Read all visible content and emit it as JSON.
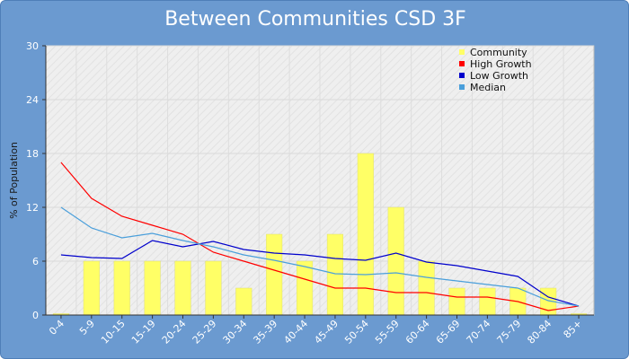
{
  "chart_data": {
    "type": "bar",
    "title": "Between Communities CSD 3F",
    "ylabel": "% of Population",
    "xlabel": "",
    "ylim": [
      0,
      30
    ],
    "yticks": [
      0,
      6,
      12,
      18,
      24,
      30
    ],
    "grid": true,
    "legend_position": "top-right",
    "categories": [
      "0-4",
      "5-9",
      "10-15",
      "15-19",
      "20-24",
      "25-29",
      "30-34",
      "35-39",
      "40-44",
      "45-49",
      "50-54",
      "55-59",
      "60-64",
      "65-69",
      "70-74",
      "75-79",
      "80-84",
      "85+"
    ],
    "series": [
      {
        "name": "Community",
        "type": "bar",
        "color": "#ffff66",
        "values": [
          0,
          6,
          6,
          6,
          6,
          6,
          3,
          9,
          6,
          9,
          18,
          12,
          6,
          3,
          3,
          3,
          3,
          0
        ]
      },
      {
        "name": "High Growth",
        "type": "line",
        "color": "#ff0000",
        "values": [
          17,
          13,
          11,
          10,
          9,
          7,
          6,
          5,
          4,
          3,
          3,
          2.5,
          2.5,
          2,
          2,
          1.5,
          0.5,
          1
        ]
      },
      {
        "name": "Low Growth",
        "type": "line",
        "color": "#0000cc",
        "values": [
          6.7,
          6.4,
          6.3,
          8.3,
          7.6,
          8.2,
          7.3,
          6.9,
          6.7,
          6.3,
          6.1,
          6.9,
          5.9,
          5.5,
          4.9,
          4.3,
          2,
          1
        ]
      },
      {
        "name": "Median",
        "type": "line",
        "color": "#4a9fdb",
        "values": [
          12,
          9.7,
          8.6,
          9.1,
          8.3,
          7.6,
          6.7,
          6.1,
          5.4,
          4.6,
          4.5,
          4.7,
          4.2,
          3.8,
          3.4,
          3,
          1.6,
          1
        ]
      }
    ]
  }
}
